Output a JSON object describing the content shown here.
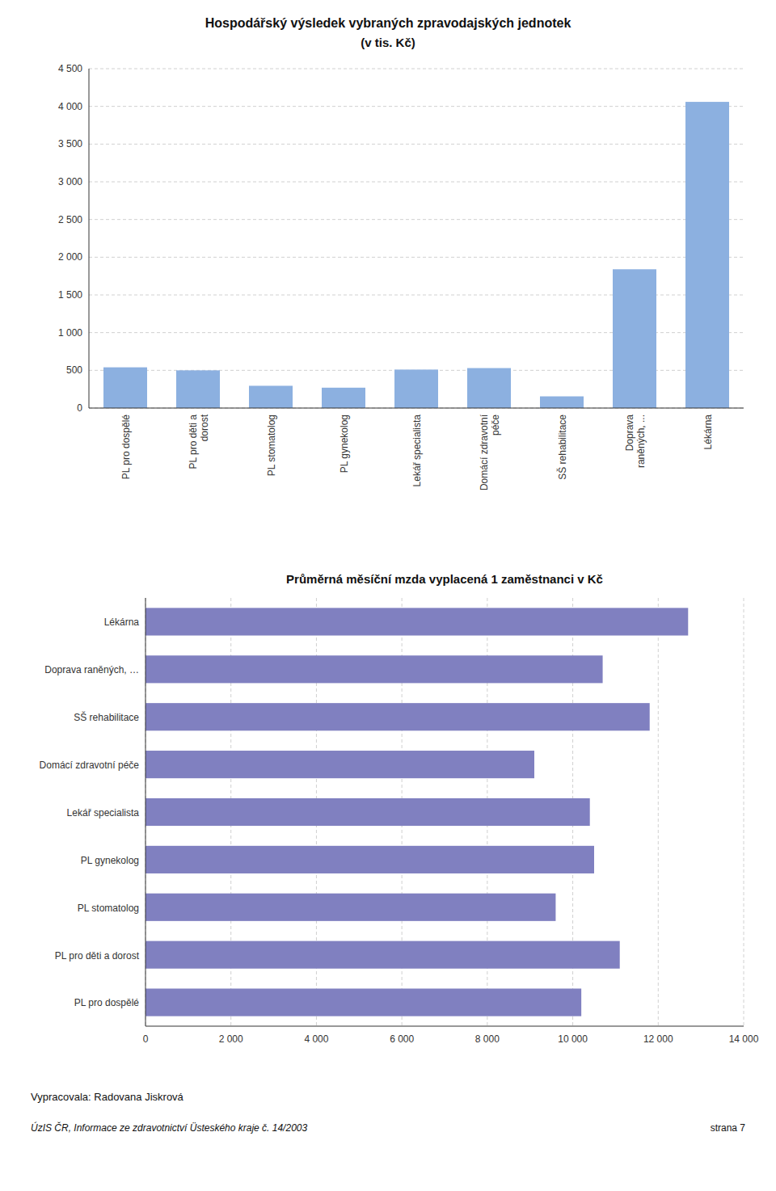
{
  "chart_data": [
    {
      "type": "bar",
      "title": "Hospodářský výsledek vybraných zpravodajských jednotek",
      "subtitle": "(v tis. Kč)",
      "categories": [
        "PL pro dospělé",
        "PL pro děti a\ndorost",
        "PL stomatolog",
        "PL gynekolog",
        "Lekář specialista",
        "Domácí zdravotní\npéče",
        "SŠ rehabilitace",
        "Doprava\nraněných, ...",
        "Lékárna"
      ],
      "values": [
        540,
        500,
        295,
        270,
        510,
        530,
        155,
        1840,
        4060
      ],
      "color": "#8cb0e0",
      "ylim": [
        0,
        4500
      ],
      "yticks": [
        0,
        500,
        {
          "value": 1000,
          "label": "1 000"
        },
        {
          "value": 1500,
          "label": "1 500"
        },
        {
          "value": 2000,
          "label": "2 000"
        },
        {
          "value": 2500,
          "label": "2 500"
        },
        {
          "value": 3000,
          "label": "3 000"
        },
        {
          "value": 3500,
          "label": "3 500"
        },
        {
          "value": 4000,
          "label": "4 000"
        },
        {
          "value": 4500,
          "label": "4 500"
        }
      ],
      "grid": true
    },
    {
      "type": "bar",
      "orientation": "horizontal",
      "title": "Průměrná měsíční mzda vyplacená 1 zaměstnanci v Kč",
      "categories": [
        "PL pro dospělé",
        "PL pro děti a dorost",
        "PL stomatolog",
        "PL gynekolog",
        "Lekář specialista",
        "Domácí zdravotní péče",
        "SŠ rehabilitace",
        "Doprava raněných, …",
        "Lékárna"
      ],
      "values": [
        10200,
        11100,
        9600,
        10500,
        10400,
        9100,
        11800,
        10700,
        12700
      ],
      "color": "#8080c0",
      "xlim": [
        0,
        14000
      ],
      "xticks": [
        0,
        {
          "value": 2000,
          "label": "2 000"
        },
        {
          "value": 4000,
          "label": "4 000"
        },
        {
          "value": 6000,
          "label": "6 000"
        },
        {
          "value": 8000,
          "label": "8 000"
        },
        {
          "value": 10000,
          "label": "10 000"
        },
        {
          "value": 12000,
          "label": "12 000"
        },
        {
          "value": 14000,
          "label": "14 000"
        }
      ],
      "grid": true,
      "annotations": [
        "Vypracovala: Radovana Jiskrová",
        "ÚzIS ČR, Informace ze zdravotnictví Üsteského kraje č. 14/2003",
        "strana 7"
      ]
    }
  ]
}
